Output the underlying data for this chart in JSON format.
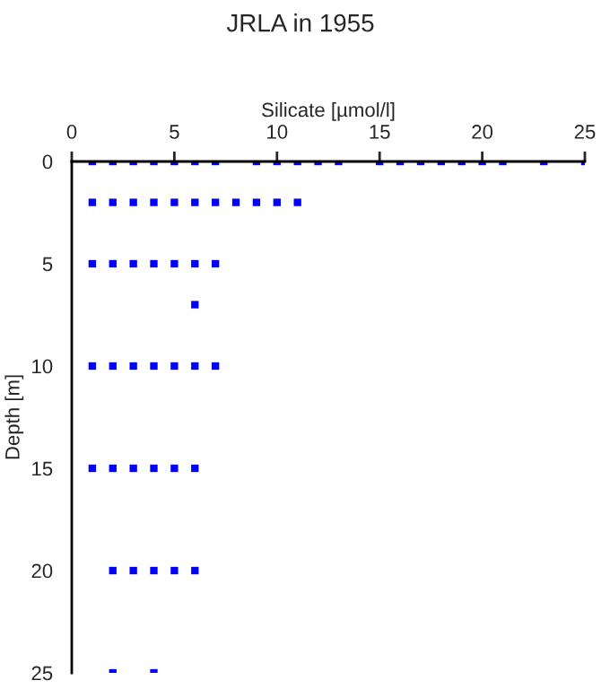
{
  "chart_data": {
    "type": "scatter",
    "title": "JRLA in 1955",
    "xlabel": "Silicate [µmol/l]",
    "ylabel": "Depth [m]",
    "x": [
      1,
      2,
      3,
      4,
      5,
      6,
      7,
      9,
      10,
      11,
      12,
      13,
      15,
      16,
      17,
      18,
      19,
      20,
      21,
      23,
      25,
      1,
      2,
      3,
      4,
      5,
      6,
      7,
      8,
      9,
      10,
      11,
      1,
      2,
      3,
      4,
      5,
      6,
      7,
      6,
      1,
      2,
      3,
      4,
      5,
      6,
      7,
      1,
      2,
      3,
      4,
      5,
      6,
      2,
      3,
      4,
      5,
      6,
      2,
      4
    ],
    "series": [
      {
        "color": "#0000ff",
        "values": [
          0,
          0,
          0,
          0,
          0,
          0,
          0,
          0,
          0,
          0,
          0,
          0,
          0,
          0,
          0,
          0,
          0,
          0,
          0,
          0,
          0,
          2,
          2,
          2,
          2,
          2,
          2,
          2,
          2,
          2,
          2,
          2,
          5,
          5,
          5,
          5,
          5,
          5,
          5,
          7,
          10,
          10,
          10,
          10,
          10,
          10,
          10,
          15,
          15,
          15,
          15,
          15,
          15,
          20,
          20,
          20,
          20,
          20,
          25,
          25
        ]
      }
    ],
    "xlim": [
      0,
      25
    ],
    "ylim": [
      25,
      0
    ],
    "xticks": [
      0,
      5,
      10,
      15,
      20,
      25
    ],
    "yticks": [
      0,
      5,
      10,
      15,
      20,
      25
    ],
    "marker": "square",
    "grid": false,
    "legend": false
  }
}
